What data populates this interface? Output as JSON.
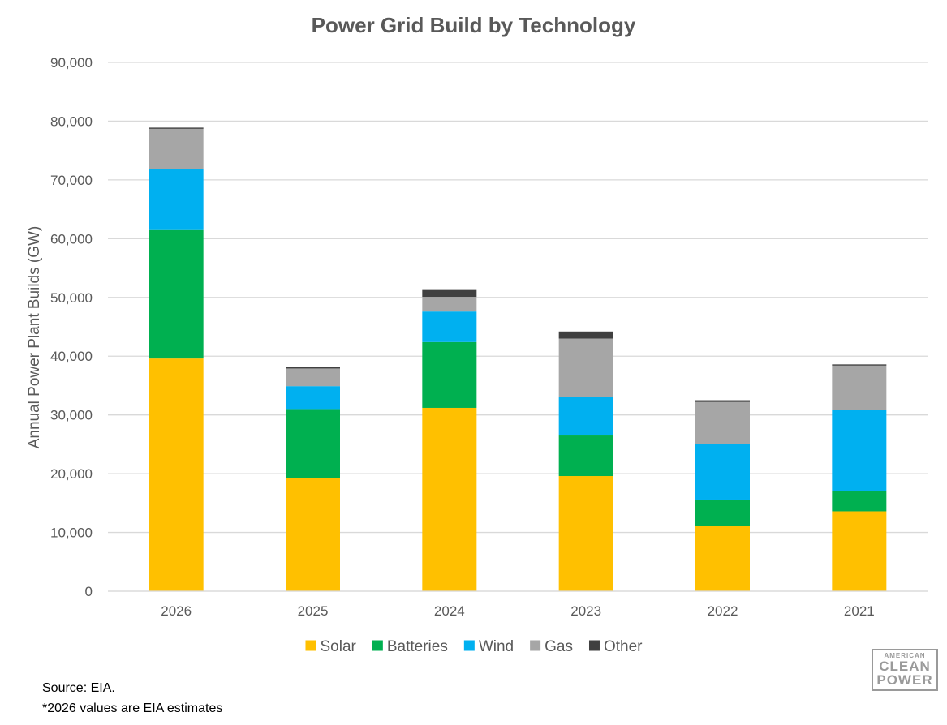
{
  "chart_data": {
    "type": "bar",
    "stacked": true,
    "title": "Power Grid Build by Technology",
    "xlabel": "",
    "ylabel": "Annual Power Plant Builds (GW)",
    "ylim": [
      0,
      90000
    ],
    "yticks": [
      0,
      10000,
      20000,
      30000,
      40000,
      50000,
      60000,
      70000,
      80000,
      90000
    ],
    "ytick_labels": [
      "0",
      "10,000",
      "20,000",
      "30,000",
      "40,000",
      "50,000",
      "60,000",
      "70,000",
      "80,000",
      "90,000"
    ],
    "grid": true,
    "legend_position": "bottom",
    "categories": [
      "2026",
      "2025",
      "2024",
      "2023",
      "2022",
      "2021"
    ],
    "series": [
      {
        "name": "Solar",
        "color": "#FFC000",
        "values": [
          39600,
          19200,
          31200,
          19600,
          11100,
          13600
        ]
      },
      {
        "name": "Batteries",
        "color": "#00B050",
        "values": [
          22000,
          11800,
          11200,
          6900,
          4500,
          3500
        ]
      },
      {
        "name": "Wind",
        "color": "#00B0F0",
        "values": [
          10300,
          3900,
          5200,
          6600,
          9400,
          13800
        ]
      },
      {
        "name": "Gas",
        "color": "#A6A6A6",
        "values": [
          6800,
          3000,
          2500,
          9900,
          7200,
          7500
        ]
      },
      {
        "name": "Other",
        "color": "#404040",
        "values": [
          200,
          200,
          1300,
          1200,
          300,
          200
        ]
      }
    ]
  },
  "footnotes": {
    "source": "Source: EIA.",
    "note": "*2026 values are EIA estimates"
  },
  "logo": {
    "line1": "AMERICAN",
    "line2": "CLEAN",
    "line3": "POWER"
  }
}
